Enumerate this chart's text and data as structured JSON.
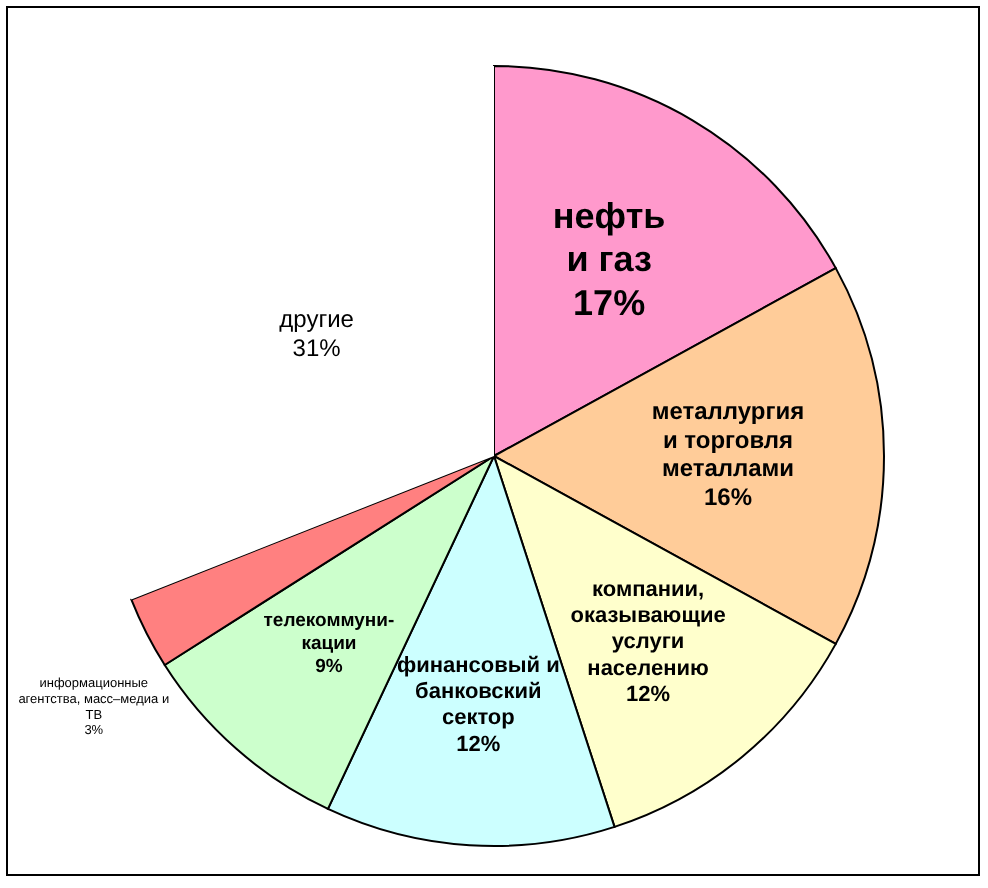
{
  "chart_data": {
    "type": "pie",
    "categories": [
      "нефть\nи газ",
      "металлургия\nи торговля\nметаллами",
      "компании,\nоказывающие\nуслуги\nнаселению",
      "финансовый и\nбанковский\nсектор",
      "телекоммуни-\nкации",
      "информационные\nагентства, масс–медиа и\nТВ",
      "другие"
    ],
    "values": [
      17,
      16,
      12,
      12,
      9,
      3,
      31
    ],
    "colors": [
      "#ff99cc",
      "#ffcc99",
      "#ffffcc",
      "#ccffff",
      "#ccffcc",
      "#ff8080",
      "#ffffff"
    ],
    "value_labels": [
      "17%",
      "16%",
      "12%",
      "12%",
      "9%",
      "3%",
      "31%"
    ]
  }
}
